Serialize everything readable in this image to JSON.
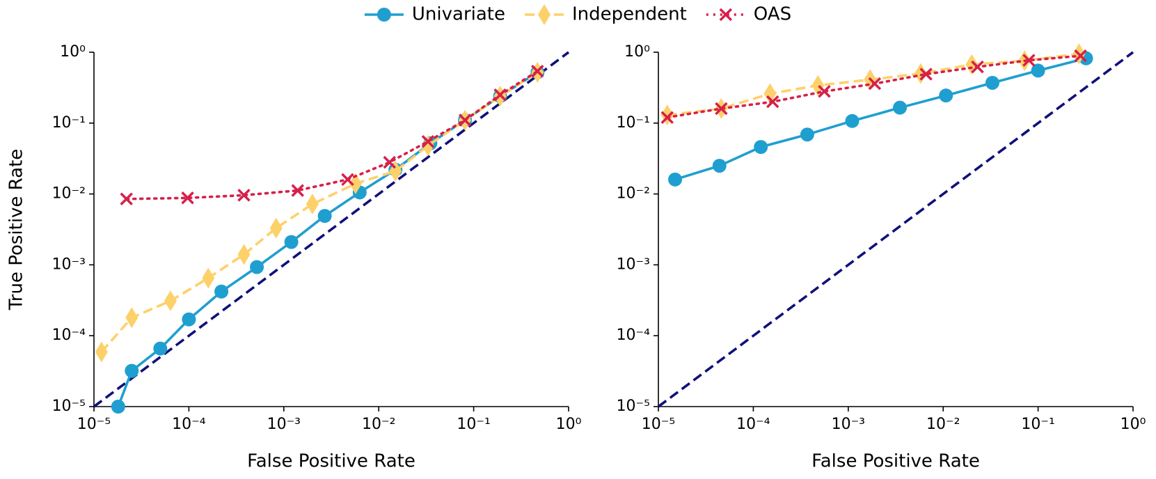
{
  "chart_data": [
    {
      "type": "line",
      "xscale": "log",
      "yscale": "log",
      "xlabel": "False Positive Rate",
      "ylabel": "True Positive Rate",
      "xlim": [
        1e-05,
        1
      ],
      "ylim": [
        1e-05,
        1
      ],
      "xticks": [
        {
          "value": 1e-05,
          "label": "10⁻⁵"
        },
        {
          "value": 0.0001,
          "label": "10⁻⁴"
        },
        {
          "value": 0.001,
          "label": "10⁻³"
        },
        {
          "value": 0.01,
          "label": "10⁻²"
        },
        {
          "value": 0.1,
          "label": "10⁻¹"
        },
        {
          "value": 1,
          "label": "10⁰"
        }
      ],
      "yticks": [
        {
          "value": 1e-05,
          "label": "10⁻⁵"
        },
        {
          "value": 0.0001,
          "label": "10⁻⁴"
        },
        {
          "value": 0.001,
          "label": "10⁻³"
        },
        {
          "value": 0.01,
          "label": "10⁻²"
        },
        {
          "value": 0.1,
          "label": "10⁻¹"
        },
        {
          "value": 1,
          "label": "10⁰"
        }
      ],
      "series": [
        {
          "color": "#10107a",
          "linestyle": "dashed",
          "marker": "none",
          "x": [
            1e-05,
            1
          ],
          "values": [
            1e-05,
            1
          ]
        },
        {
          "name": "Univariate",
          "color": "#1f9fd0",
          "linestyle": "solid",
          "marker": "o",
          "x": [
            1.8e-05,
            2.5e-05,
            5e-05,
            0.0001,
            0.00022,
            0.00052,
            0.0012,
            0.0027,
            0.0063,
            0.015,
            0.035,
            0.081,
            0.19,
            0.47
          ],
          "values": [
            1e-05,
            3.2e-05,
            6.6e-05,
            0.00017,
            0.00042,
            0.00093,
            0.0021,
            0.0049,
            0.0105,
            0.022,
            0.052,
            0.11,
            0.24,
            0.52
          ]
        },
        {
          "name": "Independent",
          "color": "#fdd16a",
          "linestyle": "dashed",
          "marker": "d",
          "x": [
            1.2e-05,
            2.5e-05,
            6.4e-05,
            0.00016,
            0.00038,
            0.00083,
            0.002,
            0.0057,
            0.015,
            0.033,
            0.081,
            0.19,
            0.47
          ],
          "values": [
            5.9e-05,
            0.00018,
            0.00031,
            0.00065,
            0.0014,
            0.0033,
            0.0072,
            0.014,
            0.021,
            0.048,
            0.11,
            0.24,
            0.52
          ]
        },
        {
          "name": "OAS",
          "color": "#d6204a",
          "linestyle": "dotted",
          "marker": "x",
          "x": [
            2.2e-05,
            9.7e-05,
            0.00038,
            0.0014,
            0.0047,
            0.013,
            0.033,
            0.081,
            0.19,
            0.47
          ],
          "values": [
            0.0085,
            0.0088,
            0.0096,
            0.0112,
            0.016,
            0.028,
            0.055,
            0.11,
            0.25,
            0.54
          ]
        }
      ]
    },
    {
      "type": "line",
      "xscale": "log",
      "yscale": "log",
      "xlabel": "False Positive Rate",
      "xlim": [
        1e-05,
        1
      ],
      "ylim": [
        1e-05,
        1
      ],
      "xticks": [
        {
          "value": 1e-05,
          "label": "10⁻⁵"
        },
        {
          "value": 0.0001,
          "label": "10⁻⁴"
        },
        {
          "value": 0.001,
          "label": "10⁻³"
        },
        {
          "value": 0.01,
          "label": "10⁻²"
        },
        {
          "value": 0.1,
          "label": "10⁻¹"
        },
        {
          "value": 1,
          "label": "10⁰"
        }
      ],
      "yticks": [
        {
          "value": 1e-05,
          "label": "10⁻⁵"
        },
        {
          "value": 0.0001,
          "label": "10⁻⁴"
        },
        {
          "value": 0.001,
          "label": "10⁻³"
        },
        {
          "value": 0.01,
          "label": "10⁻²"
        },
        {
          "value": 0.1,
          "label": "10⁻¹"
        },
        {
          "value": 1,
          "label": "10⁰"
        }
      ],
      "series": [
        {
          "color": "#10107a",
          "linestyle": "dashed",
          "marker": "none",
          "x": [
            1e-05,
            1
          ],
          "values": [
            1e-05,
            1
          ]
        },
        {
          "color": "#1f9fd0",
          "linestyle": "solid",
          "marker": "o",
          "x": [
            1.5e-05,
            4.4e-05,
            0.00012,
            0.00037,
            0.0011,
            0.0035,
            0.0107,
            0.033,
            0.1,
            0.32
          ],
          "values": [
            0.016,
            0.025,
            0.046,
            0.069,
            0.107,
            0.165,
            0.245,
            0.37,
            0.55,
            0.82
          ]
        },
        {
          "color": "#fdd16a",
          "linestyle": "dashed",
          "marker": "d",
          "x": [
            1.24e-05,
            4.6e-05,
            0.00015,
            0.00048,
            0.0017,
            0.0058,
            0.02,
            0.072,
            0.27
          ],
          "values": [
            0.13,
            0.16,
            0.26,
            0.34,
            0.41,
            0.5,
            0.67,
            0.76,
            0.95
          ]
        },
        {
          "color": "#d6204a",
          "linestyle": "dotted",
          "marker": "x",
          "x": [
            1.24e-05,
            4.6e-05,
            0.00016,
            0.00056,
            0.0019,
            0.0066,
            0.023,
            0.08,
            0.28
          ],
          "values": [
            0.12,
            0.16,
            0.2,
            0.28,
            0.36,
            0.49,
            0.62,
            0.77,
            0.89
          ]
        }
      ]
    }
  ]
}
